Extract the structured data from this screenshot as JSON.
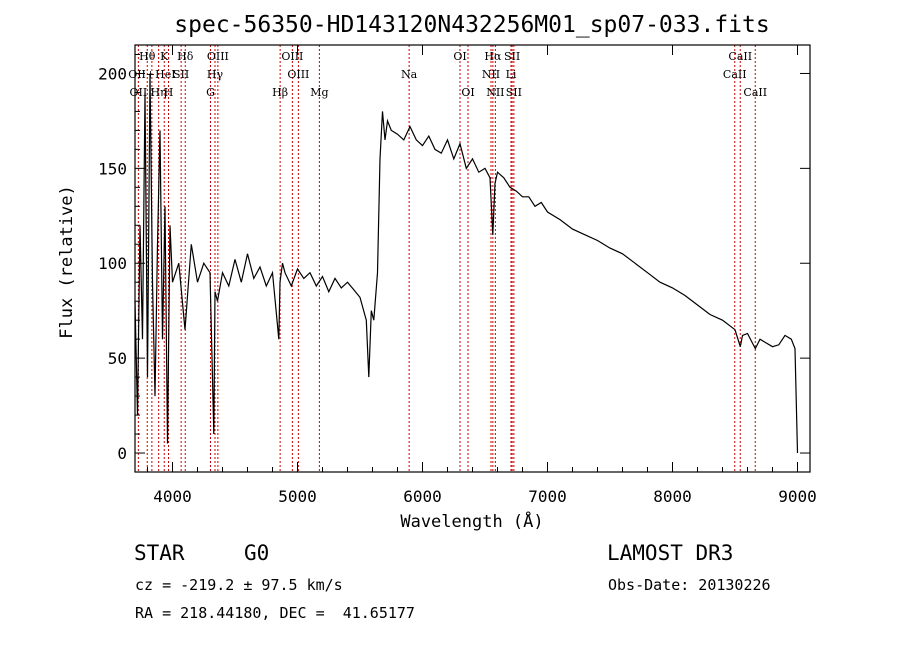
{
  "chart_data": {
    "type": "line",
    "title": "spec-56350-HD143120N432256M01_sp07-033.fits",
    "xlabel": "Wavelength (Å)",
    "ylabel": "Flux (relative)",
    "xlim": [
      3700,
      9100
    ],
    "ylim": [
      -10,
      215
    ],
    "xticks": [
      4000,
      5000,
      6000,
      7000,
      8000,
      9000
    ],
    "yticks": [
      0,
      50,
      100,
      150,
      200
    ],
    "series": [
      {
        "name": "flux",
        "x": [
          3700,
          3720,
          3740,
          3760,
          3780,
          3800,
          3820,
          3840,
          3860,
          3880,
          3900,
          3920,
          3940,
          3960,
          3980,
          4000,
          4050,
          4100,
          4150,
          4200,
          4250,
          4300,
          4330,
          4340,
          4360,
          4400,
          4450,
          4500,
          4550,
          4600,
          4650,
          4700,
          4750,
          4800,
          4850,
          4860,
          4880,
          4900,
          4950,
          5000,
          5050,
          5100,
          5150,
          5200,
          5250,
          5300,
          5350,
          5400,
          5450,
          5500,
          5550,
          5570,
          5590,
          5610,
          5640,
          5660,
          5680,
          5700,
          5720,
          5750,
          5800,
          5850,
          5900,
          5950,
          6000,
          6050,
          6100,
          6150,
          6200,
          6250,
          6300,
          6350,
          6400,
          6450,
          6500,
          6540,
          6562,
          6580,
          6600,
          6650,
          6700,
          6750,
          6800,
          6850,
          6900,
          6950,
          7000,
          7100,
          7200,
          7300,
          7400,
          7500,
          7600,
          7700,
          7800,
          7900,
          8000,
          8100,
          8200,
          8300,
          8400,
          8500,
          8542,
          8560,
          8600,
          8662,
          8700,
          8750,
          8800,
          8850,
          8900,
          8950,
          8980,
          9000
        ],
        "y": [
          80,
          20,
          120,
          60,
          190,
          40,
          200,
          90,
          30,
          110,
          170,
          60,
          130,
          5,
          120,
          90,
          100,
          65,
          110,
          90,
          100,
          95,
          10,
          85,
          80,
          95,
          88,
          102,
          90,
          105,
          92,
          98,
          88,
          95,
          60,
          90,
          100,
          95,
          88,
          97,
          92,
          95,
          88,
          93,
          85,
          92,
          87,
          90,
          86,
          82,
          70,
          40,
          75,
          70,
          95,
          155,
          180,
          165,
          175,
          170,
          168,
          165,
          172,
          165,
          162,
          167,
          160,
          158,
          165,
          155,
          163,
          150,
          155,
          148,
          150,
          145,
          115,
          142,
          148,
          145,
          140,
          138,
          135,
          135,
          130,
          132,
          127,
          123,
          118,
          115,
          112,
          108,
          105,
          100,
          95,
          90,
          87,
          83,
          78,
          73,
          70,
          65,
          56,
          62,
          63,
          55,
          60,
          58,
          56,
          57,
          62,
          60,
          55,
          0
        ]
      }
    ],
    "spectral_lines": [
      {
        "label": "Hθ",
        "wavelength": 3798,
        "row": 1
      },
      {
        "label": "K",
        "wavelength": 3934,
        "row": 1
      },
      {
        "label": "Hδ",
        "wavelength": 4102,
        "row": 1
      },
      {
        "label": "OIII",
        "wavelength": 4363,
        "row": 1
      },
      {
        "label": "OIII",
        "wavelength": 4959,
        "row": 1
      },
      {
        "label": "OI",
        "wavelength": 6300,
        "row": 1
      },
      {
        "label": "Hα",
        "wavelength": 6563,
        "row": 1
      },
      {
        "label": "SII",
        "wavelength": 6717,
        "row": 1
      },
      {
        "label": "CaII",
        "wavelength": 8542,
        "row": 1
      },
      {
        "label": "OII+HeI",
        "wavelength": 3835,
        "row": 2
      },
      {
        "label": "SII",
        "wavelength": 4069,
        "row": 2
      },
      {
        "label": "Hγ",
        "wavelength": 4340,
        "row": 2
      },
      {
        "label": "OIII",
        "wavelength": 5007,
        "row": 2
      },
      {
        "label": "Na",
        "wavelength": 5893,
        "row": 2
      },
      {
        "label": "NII",
        "wavelength": 6548,
        "row": 2
      },
      {
        "label": "Li",
        "wavelength": 6708,
        "row": 2
      },
      {
        "label": "CaII",
        "wavelength": 8498,
        "row": 2
      },
      {
        "label": "OII",
        "wavelength": 3727,
        "row": 3
      },
      {
        "label": "Hη",
        "wavelength": 3889,
        "row": 3
      },
      {
        "label": "H",
        "wavelength": 3968,
        "row": 3
      },
      {
        "label": "G",
        "wavelength": 4304,
        "row": 3
      },
      {
        "label": "Hβ",
        "wavelength": 4861,
        "row": 3
      },
      {
        "label": "Mg",
        "wavelength": 5175,
        "row": 3
      },
      {
        "label": "OI",
        "wavelength": 6364,
        "row": 3
      },
      {
        "label": "NII",
        "wavelength": 6583,
        "row": 3
      },
      {
        "label": "SII",
        "wavelength": 6731,
        "row": 3
      },
      {
        "label": "CaII",
        "wavelength": 8662,
        "row": 3
      }
    ],
    "line_color": "#000000",
    "marker_color": "#cc0000"
  },
  "info": {
    "object_type": "STAR",
    "subclass": "G0",
    "survey": "LAMOST DR3",
    "velocity": "cz = -219.2 ± 97.5 km/s",
    "obs_date": "Obs-Date: 20130226",
    "coords": "RA = 218.44180, DEC =  41.65177"
  }
}
